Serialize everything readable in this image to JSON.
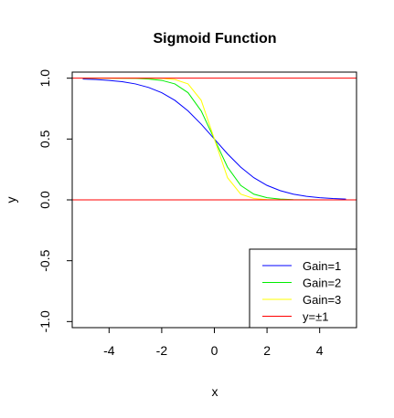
{
  "chart_data": {
    "type": "line",
    "title": "Sigmoid Function",
    "xlabel": "x",
    "ylabel": "y",
    "xlim": [
      -5.4,
      5.4
    ],
    "ylim": [
      -1.05,
      1.05
    ],
    "xticks": [
      -4,
      -2,
      0,
      2,
      4
    ],
    "xtick_labels": [
      "-4",
      "-2",
      "0",
      "2",
      "4"
    ],
    "yticks": [
      -1.0,
      -0.5,
      0.0,
      0.5,
      1.0
    ],
    "ytick_labels": [
      "-1.0",
      "-0.5",
      "0.0",
      "0.5",
      "1.0"
    ],
    "grid": false,
    "legend_position": "bottom-right",
    "x": [
      -5,
      -4.5,
      -4,
      -3.5,
      -3,
      -2.5,
      -2,
      -1.5,
      -1,
      -0.5,
      0,
      0.5,
      1,
      1.5,
      2,
      2.5,
      3,
      3.5,
      4,
      4.5,
      5
    ],
    "series": [
      {
        "name": "Gain=1",
        "color": "#0000ff",
        "values": [
          0.993,
          0.989,
          0.982,
          0.971,
          0.953,
          0.924,
          0.881,
          0.818,
          0.731,
          0.622,
          0.5,
          0.378,
          0.269,
          0.182,
          0.119,
          0.076,
          0.047,
          0.029,
          0.018,
          0.011,
          0.007
        ]
      },
      {
        "name": "Gain=2",
        "color": "#00ee00",
        "values": [
          1.0,
          1.0,
          1.0,
          0.999,
          0.998,
          0.993,
          0.982,
          0.953,
          0.881,
          0.731,
          0.5,
          0.269,
          0.119,
          0.047,
          0.018,
          0.007,
          0.002,
          0.001,
          0.0,
          0.0,
          0.0
        ]
      },
      {
        "name": "Gain=3",
        "color": "#ffff00",
        "values": [
          1.0,
          1.0,
          1.0,
          1.0,
          1.0,
          0.999,
          0.998,
          0.989,
          0.953,
          0.818,
          0.5,
          0.182,
          0.047,
          0.011,
          0.002,
          0.001,
          0.0,
          0.0,
          0.0,
          0.0,
          0.0
        ]
      }
    ],
    "hlines": [
      {
        "name": "y=±1",
        "color": "#ff0000",
        "y": [
          1,
          0
        ]
      }
    ]
  }
}
